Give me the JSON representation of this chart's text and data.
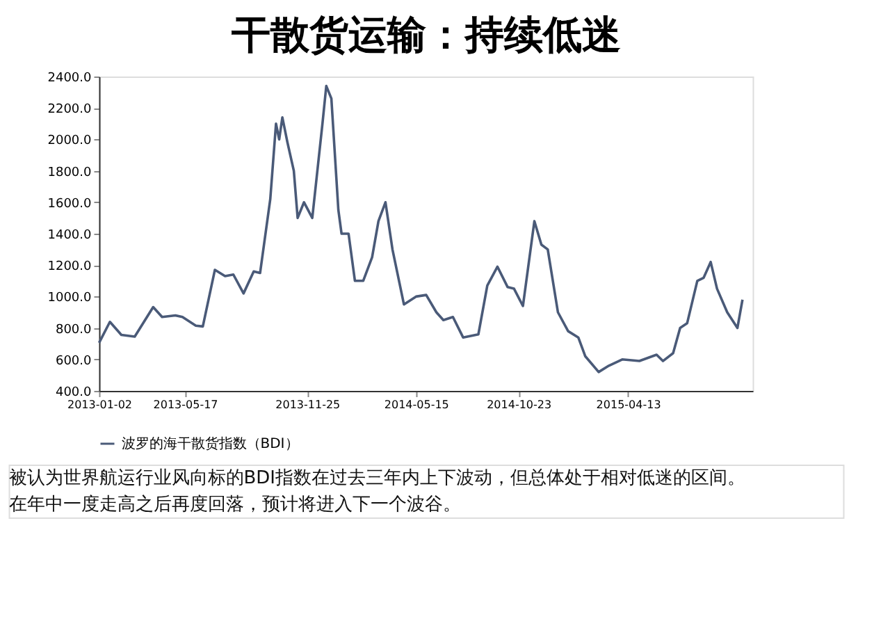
{
  "chart_data": {
    "type": "line",
    "title": "干散货运输：持续低迷",
    "x": [
      "2013-01-02",
      "2013-01-19",
      "2013-02-06",
      "2013-02-27",
      "2013-03-28",
      "2013-04-11",
      "2013-05-02",
      "2013-05-13",
      "2013-06-03",
      "2013-06-14",
      "2013-07-03",
      "2013-07-19",
      "2013-08-01",
      "2013-08-17",
      "2013-09-02",
      "2013-09-12",
      "2013-09-28",
      "2013-10-07",
      "2013-10-12",
      "2013-10-17",
      "2013-10-25",
      "2013-11-04",
      "2013-11-10",
      "2013-11-20",
      "2013-12-03",
      "2013-12-19",
      "2013-12-25",
      "2014-01-02",
      "2014-01-13",
      "2014-01-18",
      "2014-01-29",
      "2014-02-08",
      "2014-02-21",
      "2014-03-07",
      "2014-03-17",
      "2014-03-28",
      "2014-04-08",
      "2014-04-26",
      "2014-05-15",
      "2014-05-31",
      "2014-06-16",
      "2014-06-27",
      "2014-07-12",
      "2014-07-28",
      "2014-08-21",
      "2014-09-04",
      "2014-09-20",
      "2014-10-06",
      "2014-10-16",
      "2014-10-30",
      "2014-11-17",
      "2014-11-28",
      "2014-12-08",
      "2014-12-24",
      "2015-01-09",
      "2015-01-25",
      "2015-02-05",
      "2015-02-26",
      "2015-03-14",
      "2015-04-04",
      "2015-05-01",
      "2015-05-28",
      "2015-06-07",
      "2015-06-23",
      "2015-07-04",
      "2015-07-15",
      "2015-07-31",
      "2015-08-10",
      "2015-08-21",
      "2015-08-31",
      "2015-09-16",
      "2015-10-02",
      "2015-10-10"
    ],
    "series": [
      {
        "name": "波罗的海干散货指数（BDI）",
        "color": "#4a5a78",
        "values": [
          706,
          839,
          756,
          745,
          933,
          870,
          880,
          870,
          815,
          810,
          1170,
          1130,
          1140,
          1020,
          1160,
          1150,
          1620,
          2100,
          2000,
          2140,
          1980,
          1800,
          1500,
          1600,
          1500,
          2100,
          2340,
          2260,
          1550,
          1400,
          1400,
          1100,
          1100,
          1250,
          1480,
          1600,
          1300,
          950,
          1000,
          1010,
          900,
          850,
          870,
          740,
          760,
          1070,
          1190,
          1060,
          1050,
          940,
          1480,
          1330,
          1300,
          900,
          780,
          740,
          620,
          520,
          560,
          600,
          590,
          630,
          590,
          640,
          800,
          830,
          1100,
          1120,
          1220,
          1050,
          900,
          800,
          980
        ]
      }
    ],
    "xlim": [
      "2013-01-02",
      "2015-10-26"
    ],
    "xticks": [
      "2013-01-02",
      "2013-05-17",
      "2013-11-25",
      "2014-05-15",
      "2014-10-23",
      "2015-04-13"
    ],
    "ylim": [
      400,
      2400
    ],
    "yticks": [
      {
        "value": 400,
        "label": "400.0"
      },
      {
        "value": 600,
        "label": "600.0"
      },
      {
        "value": 800,
        "label": "800.0"
      },
      {
        "value": 1000,
        "label": "1000.0"
      },
      {
        "value": 1200,
        "label": "1200.0"
      },
      {
        "value": 1400,
        "label": "1400.0"
      },
      {
        "value": 1600,
        "label": "1600.0"
      },
      {
        "value": 1800,
        "label": "1800.0"
      },
      {
        "value": 2000,
        "label": "2000.0"
      },
      {
        "value": 2200,
        "label": "2200.0"
      },
      {
        "value": 2400,
        "label": "2400.0"
      }
    ],
    "grid": false,
    "legend": "bottom",
    "marker": "none",
    "line_style": "solid",
    "annotations": [
      "被认为世界航运行业风向标的BDI指数在过去三年内上下波动，但总体处于相对低迷的区间。",
      "在年中一度走高之后再度回落，预计将进入下一个波谷。"
    ]
  }
}
